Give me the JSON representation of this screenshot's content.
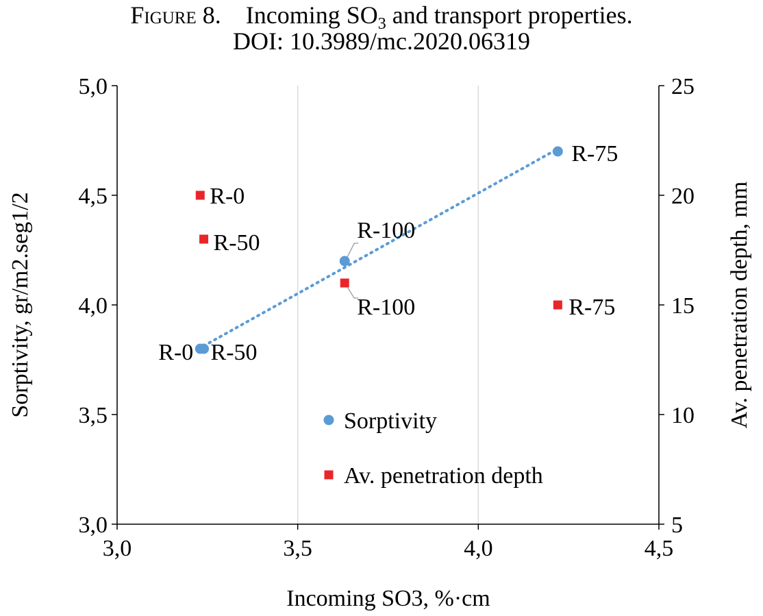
{
  "caption": {
    "figure_label": "Figure 8.",
    "title_prefix": "Incoming SO",
    "title_subscript": "3",
    "title_suffix": " and transport properties.",
    "doi": "DOI: 10.3989/mc.2020.06319"
  },
  "chart_data": {
    "type": "scatter",
    "xlabel": "Incoming SO3, %·cm",
    "ylabel_left": "Sorptivity,  gr/m2.seg1/2",
    "ylabel_right": "Av. penetration depth, mm",
    "xlim": [
      3.0,
      4.5
    ],
    "ylim_left": [
      3.0,
      5.0
    ],
    "ylim_right": [
      5,
      25
    ],
    "x_ticks": [
      "3,0",
      "3,5",
      "4,0",
      "4,5"
    ],
    "x_tick_values": [
      3.0,
      3.5,
      4.0,
      4.5
    ],
    "y_left_ticks": [
      "3,0",
      "3,5",
      "4,0",
      "4,5",
      "5,0"
    ],
    "y_left_tick_values": [
      3.0,
      3.5,
      4.0,
      4.5,
      5.0
    ],
    "y_right_ticks": [
      "5",
      "10",
      "15",
      "20",
      "25"
    ],
    "y_right_tick_values": [
      5,
      10,
      15,
      20,
      25
    ],
    "grid": "vertical",
    "series": [
      {
        "name": "Sorptivity",
        "axis": "left",
        "marker": "circle",
        "color": "#5B9BD5",
        "points": [
          {
            "x": 3.23,
            "y": 3.8,
            "label": "R-0"
          },
          {
            "x": 3.24,
            "y": 3.8,
            "label": "R-50"
          },
          {
            "x": 3.63,
            "y": 4.2,
            "label": "R-100"
          },
          {
            "x": 4.22,
            "y": 4.7,
            "label": "R-75"
          }
        ],
        "trendline": {
          "style": "dotted",
          "type": "linear",
          "x_range": [
            3.24,
            4.22
          ]
        }
      },
      {
        "name": "Av. penetration depth",
        "axis": "right",
        "marker": "square",
        "color": "#E8262A",
        "points": [
          {
            "x": 3.23,
            "y": 20,
            "label": "R-0"
          },
          {
            "x": 3.24,
            "y": 18,
            "label": "R-50"
          },
          {
            "x": 3.63,
            "y": 16,
            "label": "R-100"
          },
          {
            "x": 4.22,
            "y": 15,
            "label": "R-75"
          }
        ]
      }
    ],
    "legend": {
      "position": "lower-center"
    }
  }
}
